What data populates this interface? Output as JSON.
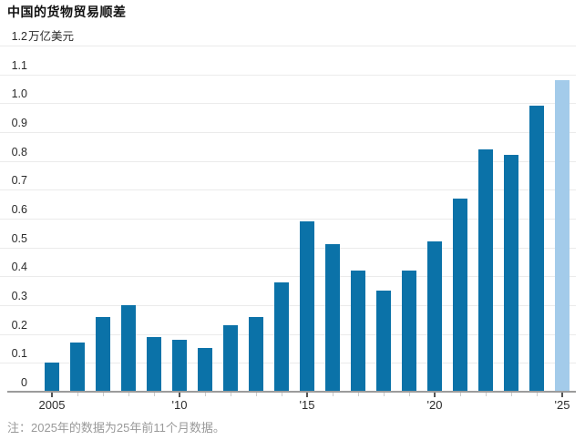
{
  "title": "中国的货物贸易顺差",
  "footnote": "注：2025年的数据为25年前11个月数据。",
  "chart_data": {
    "type": "bar",
    "title": "中国的货物贸易顺差",
    "xlabel": "",
    "ylabel": "万亿美元",
    "unit_label": "万亿美元",
    "ylim": [
      0,
      1.2
    ],
    "ytick_step": 0.1,
    "grid": true,
    "legend": "none",
    "categories": [
      "2005",
      "2006",
      "2007",
      "2008",
      "2009",
      "2010",
      "2011",
      "2012",
      "2013",
      "2014",
      "2015",
      "2016",
      "2017",
      "2018",
      "2019",
      "2020",
      "2021",
      "2022",
      "2023",
      "2024",
      "2025"
    ],
    "values": [
      0.1,
      0.17,
      0.26,
      0.3,
      0.19,
      0.18,
      0.15,
      0.23,
      0.26,
      0.38,
      0.59,
      0.51,
      0.42,
      0.35,
      0.42,
      0.52,
      0.67,
      0.84,
      0.82,
      0.99,
      1.08
    ],
    "x_axis_labels": [
      {
        "index": 0,
        "label": "2005"
      },
      {
        "index": 5,
        "label": "'10"
      },
      {
        "index": 10,
        "label": "'15"
      },
      {
        "index": 15,
        "label": "'20"
      },
      {
        "index": 20,
        "label": "'25"
      }
    ],
    "highlight_last_bar": true,
    "colors": {
      "bar": "#0b72a8",
      "bar_highlight": "#a3cbea",
      "gridline": "#ebebeb",
      "axis_line": "#9c9c9c",
      "tick_major": "#555555",
      "tick_minor": "#cccccc",
      "title_text": "#111111",
      "axis_text": "#2b2b2b",
      "footnote_text": "#999999"
    }
  }
}
